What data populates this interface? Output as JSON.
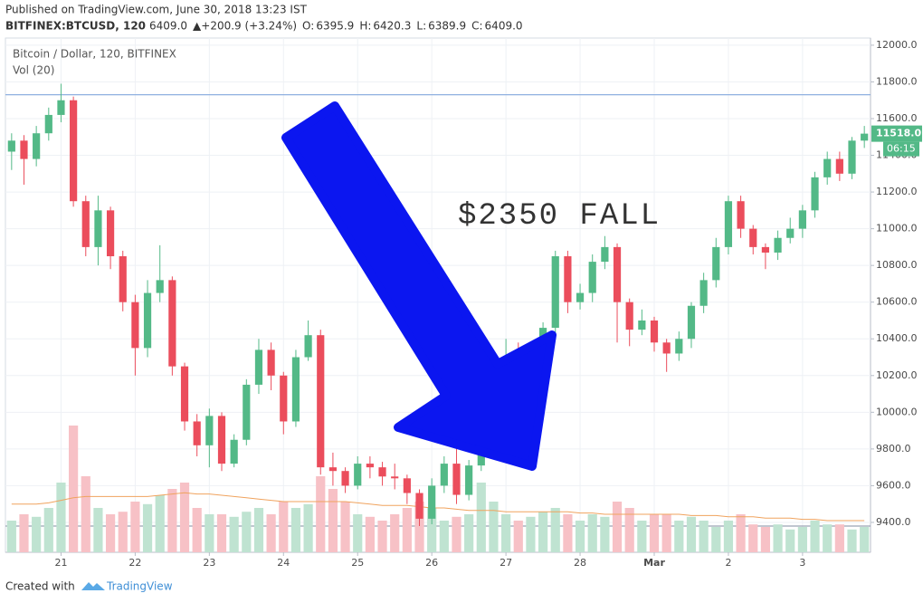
{
  "header": {
    "published": "Published on TradingView.com, June 30, 2018 13:23 IST",
    "symbol": "BITFINEX:BTCUSD, 120",
    "price": "6409.0",
    "change": "▲+200.9 (+3.24%)",
    "o_label": "O:",
    "o_value": "6395.9",
    "h_label": "H:",
    "h_value": "6420.3",
    "l_label": "L:",
    "l_value": "6389.9",
    "c_label": "C:",
    "c_value": "6409.0"
  },
  "footer": {
    "created": "Created with",
    "brand": "TradingView"
  },
  "chart_data": {
    "type": "candlestick",
    "title": "Bitcoin / Dollar, 120, BITFINEX",
    "volume_title": "Vol (20)",
    "annotation": "$2350 FALL",
    "annotation_color": "#e02020",
    "x": [
      0,
      1,
      2,
      3,
      4,
      5,
      6,
      7,
      8,
      9,
      10,
      11,
      12,
      13,
      14,
      15,
      16,
      17,
      18,
      19,
      20,
      21,
      22,
      23,
      24,
      25,
      26,
      27,
      28,
      29,
      30,
      31,
      32,
      33,
      34,
      35,
      36,
      37,
      38,
      39,
      40,
      41,
      42,
      43,
      44,
      45,
      46,
      47,
      48,
      49,
      50,
      51,
      52,
      53,
      54,
      55,
      56,
      57,
      58,
      59,
      60,
      61,
      62,
      63,
      64,
      65,
      66,
      67,
      68,
      69
    ],
    "open": [
      11420,
      11480,
      11380,
      11520,
      11620,
      11700,
      11150,
      10900,
      11100,
      10850,
      10600,
      10350,
      10650,
      10720,
      10250,
      9950,
      9820,
      9980,
      9720,
      9850,
      10150,
      10340,
      10200,
      9950,
      10300,
      10420,
      9700,
      9680,
      9600,
      9720,
      9700,
      9650,
      9640,
      9560,
      9420,
      9600,
      9720,
      9550,
      9710,
      10200,
      10260,
      10300,
      10250,
      10320,
      10460,
      10850,
      10600,
      10650,
      10820,
      10900,
      10600,
      10450,
      10500,
      10380,
      10320,
      10400,
      10580,
      10720,
      10900,
      11150,
      11000,
      10900,
      10870,
      10950,
      11000,
      11100,
      11280,
      11380,
      11300,
      11480
    ],
    "high": [
      11520,
      11510,
      11560,
      11660,
      11790,
      11720,
      11180,
      11180,
      11120,
      10880,
      10640,
      10720,
      10910,
      10740,
      10270,
      9990,
      10020,
      10000,
      9880,
      10180,
      10400,
      10380,
      10220,
      10340,
      10500,
      10450,
      9780,
      9700,
      9760,
      9760,
      9730,
      9720,
      9660,
      9580,
      9640,
      9760,
      9820,
      9740,
      10230,
      10340,
      10400,
      10380,
      10360,
      10490,
      10880,
      10880,
      10700,
      10860,
      10960,
      10920,
      10620,
      10560,
      10520,
      10400,
      10440,
      10600,
      10760,
      10950,
      11180,
      11180,
      11020,
      10920,
      10990,
      11060,
      11130,
      11310,
      11420,
      11420,
      11500,
      11560
    ],
    "low": [
      11320,
      11240,
      11340,
      11480,
      11580,
      11120,
      10850,
      10800,
      10780,
      10550,
      10200,
      10300,
      10600,
      10200,
      9900,
      9760,
      9700,
      9680,
      9700,
      9820,
      10100,
      10120,
      9880,
      9920,
      10280,
      9660,
      9600,
      9560,
      9580,
      9640,
      9600,
      9580,
      9500,
      9380,
      9390,
      9560,
      9500,
      9520,
      9680,
      10120,
      10180,
      10130,
      10200,
      10280,
      10400,
      10540,
      10560,
      10600,
      10780,
      10380,
      10360,
      10420,
      10330,
      10220,
      10280,
      10350,
      10540,
      10680,
      10860,
      10950,
      10860,
      10780,
      10830,
      10920,
      10950,
      11060,
      11240,
      11260,
      11270,
      11440
    ],
    "close": [
      11480,
      11380,
      11520,
      11620,
      11700,
      11150,
      10900,
      11100,
      10850,
      10600,
      10350,
      10650,
      10720,
      10250,
      9950,
      9820,
      9980,
      9720,
      9850,
      10150,
      10340,
      10200,
      9950,
      10300,
      10420,
      9700,
      9680,
      9600,
      9720,
      9700,
      9650,
      9640,
      9560,
      9420,
      9600,
      9720,
      9550,
      9710,
      10200,
      10260,
      10300,
      10250,
      10320,
      10460,
      10850,
      10600,
      10650,
      10820,
      10900,
      10600,
      10450,
      10500,
      10380,
      10320,
      10400,
      10580,
      10720,
      10900,
      11150,
      11000,
      10900,
      10870,
      10950,
      11000,
      11100,
      11280,
      11380,
      11300,
      11480,
      11518
    ],
    "volume": [
      25,
      30,
      28,
      35,
      55,
      100,
      60,
      35,
      30,
      32,
      40,
      38,
      45,
      50,
      55,
      35,
      30,
      30,
      28,
      32,
      35,
      30,
      40,
      35,
      38,
      60,
      50,
      40,
      30,
      28,
      25,
      30,
      35,
      40,
      35,
      25,
      28,
      30,
      55,
      40,
      30,
      25,
      28,
      32,
      35,
      30,
      25,
      30,
      28,
      40,
      35,
      25,
      30,
      30,
      25,
      28,
      25,
      20,
      25,
      30,
      22,
      20,
      22,
      18,
      20,
      25,
      22,
      22,
      18,
      20
    ],
    "volume_ma": [
      38,
      38,
      38,
      39,
      41,
      43,
      44,
      44,
      44,
      44,
      44,
      44,
      45,
      46,
      47,
      46,
      46,
      45,
      44,
      43,
      42,
      41,
      40,
      40,
      40,
      40,
      40,
      40,
      39,
      38,
      37,
      37,
      37,
      36,
      35,
      35,
      34,
      33,
      33,
      33,
      32,
      32,
      32,
      32,
      32,
      32,
      31,
      31,
      30,
      30,
      30,
      30,
      30,
      30,
      30,
      29,
      29,
      29,
      28,
      28,
      28,
      27,
      27,
      27,
      26,
      26,
      25,
      25,
      25,
      25
    ],
    "up_color": "#53b987",
    "down_color": "#eb4d5c",
    "volume_up_color": "#bfe3d1",
    "volume_down_color": "#f7c1c6",
    "volume_ma_color": "#f0a35e",
    "vlim": [
      0,
      100
    ],
    "xlim": [
      -0.5,
      69.5
    ],
    "xticks": [
      {
        "value": 4,
        "label": "21"
      },
      {
        "value": 10,
        "label": "22"
      },
      {
        "value": 16,
        "label": "23"
      },
      {
        "value": 22,
        "label": "24"
      },
      {
        "value": 28,
        "label": "25"
      },
      {
        "value": 34,
        "label": "26"
      },
      {
        "value": 40,
        "label": "27"
      },
      {
        "value": 46,
        "label": "28"
      },
      {
        "value": 52,
        "label": "Mar"
      },
      {
        "value": 58,
        "label": "2"
      },
      {
        "value": 64,
        "label": "3"
      }
    ],
    "ylim": [
      9237,
      12039
    ],
    "yticks": [
      {
        "value": 9400,
        "label": "9400.0"
      },
      {
        "value": 9600,
        "label": "9600.0"
      },
      {
        "value": 9800,
        "label": "9800.0"
      },
      {
        "value": 10000,
        "label": "10000.0"
      },
      {
        "value": 10200,
        "label": "10200.0"
      },
      {
        "value": 10400,
        "label": "10400.0"
      },
      {
        "value": 10600,
        "label": "10600.0"
      },
      {
        "value": 10800,
        "label": "10800.0"
      },
      {
        "value": 11000,
        "label": "11000.0"
      },
      {
        "value": 11200,
        "label": "11200.0"
      },
      {
        "value": 11400,
        "label": "11400.0"
      },
      {
        "value": 11600,
        "label": "11600.0"
      },
      {
        "value": 11800,
        "label": "11800.0"
      },
      {
        "value": 12000,
        "label": "12000.0"
      }
    ],
    "grid": true,
    "hlines": [
      {
        "value": 11730,
        "color": "#8fb0e0"
      },
      {
        "value": 9380,
        "color": "#9aa3b5"
      }
    ],
    "last_price": {
      "value": 11518,
      "label": "11518.0"
    },
    "countdown": "06:15"
  }
}
